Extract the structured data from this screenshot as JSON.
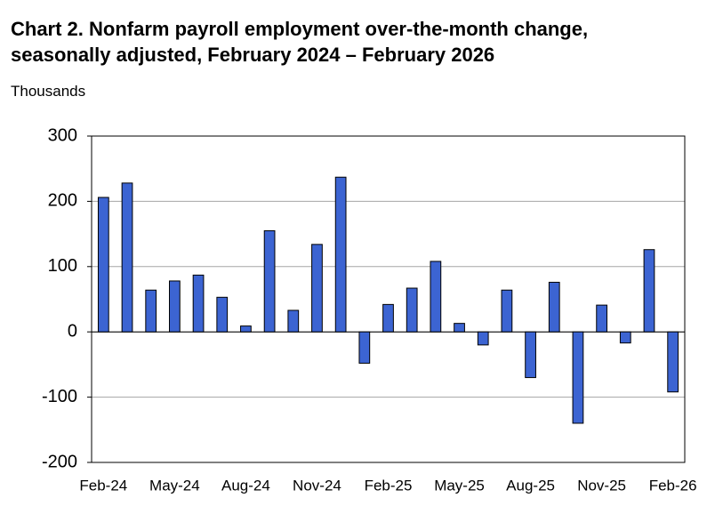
{
  "chart_data": {
    "type": "bar",
    "title": "Chart 2. Nonfarm payroll employment over-the-month change, seasonally adjusted, February 2024 – February 2026",
    "y_axis_label": "Thousands",
    "categories": [
      "Feb-24",
      null,
      null,
      "May-24",
      null,
      null,
      "Aug-24",
      null,
      null,
      "Nov-24",
      null,
      null,
      "Feb-25",
      null,
      null,
      "May-25",
      null,
      null,
      "Aug-25",
      null,
      null,
      "Nov-25",
      null,
      null,
      "Feb-26"
    ],
    "values": [
      206,
      228,
      64,
      78,
      87,
      53,
      9,
      155,
      33,
      134,
      237,
      -48,
      42,
      67,
      108,
      13,
      -20,
      64,
      -70,
      76,
      -140,
      41,
      -17,
      126,
      -92
    ],
    "color": "#3c64d2",
    "ylim": [
      -200,
      300
    ],
    "yticks": [
      -200,
      -100,
      0,
      100,
      200,
      300
    ],
    "grid": true
  }
}
